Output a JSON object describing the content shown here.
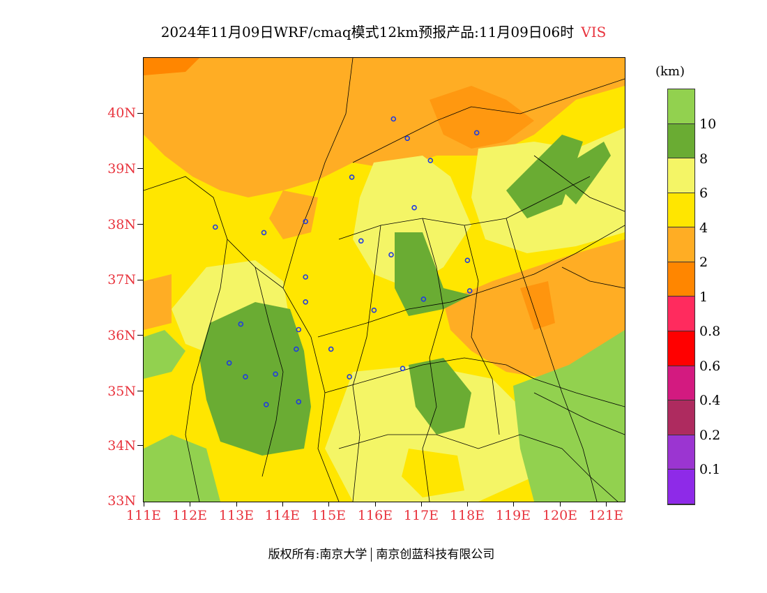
{
  "title": {
    "main": "2024年11月09日WRF/cmaq模式12km预报产品:11月09日06时",
    "variable": "VIS"
  },
  "map": {
    "lon_range": [
      111,
      121.4
    ],
    "lat_range": [
      33,
      41
    ],
    "lat_labels": [
      "40N",
      "39N",
      "38N",
      "37N",
      "36N",
      "35N",
      "34N",
      "33N"
    ],
    "lon_labels": [
      "111E",
      "112E",
      "113E",
      "114E",
      "115E",
      "116E",
      "117E",
      "118E",
      "119E",
      "120E",
      "121E"
    ],
    "station_marker": "blue-circle-icon",
    "stations": [
      {
        "lon": 116.4,
        "lat": 39.9
      },
      {
        "lon": 116.7,
        "lat": 39.55
      },
      {
        "lon": 117.2,
        "lat": 39.15
      },
      {
        "lon": 118.2,
        "lat": 39.65
      },
      {
        "lon": 115.5,
        "lat": 38.85
      },
      {
        "lon": 116.85,
        "lat": 38.3
      },
      {
        "lon": 112.55,
        "lat": 37.95
      },
      {
        "lon": 113.6,
        "lat": 37.85
      },
      {
        "lon": 114.5,
        "lat": 38.05
      },
      {
        "lon": 115.7,
        "lat": 37.7
      },
      {
        "lon": 116.35,
        "lat": 37.45
      },
      {
        "lon": 118.0,
        "lat": 37.35
      },
      {
        "lon": 114.5,
        "lat": 37.05
      },
      {
        "lon": 118.05,
        "lat": 36.8
      },
      {
        "lon": 117.05,
        "lat": 36.65
      },
      {
        "lon": 114.5,
        "lat": 36.6
      },
      {
        "lon": 115.98,
        "lat": 36.45
      },
      {
        "lon": 113.1,
        "lat": 36.2
      },
      {
        "lon": 114.35,
        "lat": 36.1
      },
      {
        "lon": 114.3,
        "lat": 35.75
      },
      {
        "lon": 115.05,
        "lat": 35.75
      },
      {
        "lon": 112.85,
        "lat": 35.5
      },
      {
        "lon": 116.6,
        "lat": 35.4
      },
      {
        "lon": 113.2,
        "lat": 35.25
      },
      {
        "lon": 113.85,
        "lat": 35.3
      },
      {
        "lon": 115.45,
        "lat": 35.25
      },
      {
        "lon": 114.35,
        "lat": 34.8
      },
      {
        "lon": 113.65,
        "lat": 34.75
      }
    ]
  },
  "legend": {
    "unit": "(km)",
    "colors": [
      "#92d14f",
      "#6aac33",
      "#f4f566",
      "#ffe600",
      "#ffad24",
      "#ff8600",
      "#ff2b5e",
      "#ff0000",
      "#d31a80",
      "#ae2b5f",
      "#9b35d1",
      "#8e2ae8"
    ],
    "labels": [
      "10",
      "8",
      "6",
      "4",
      "2",
      "1",
      "0.8",
      "0.6",
      "0.4",
      "0.2",
      "0.1"
    ]
  },
  "copyright": {
    "left": "版权所有:南京大学",
    "right": "南京创蓝科技有限公司"
  }
}
